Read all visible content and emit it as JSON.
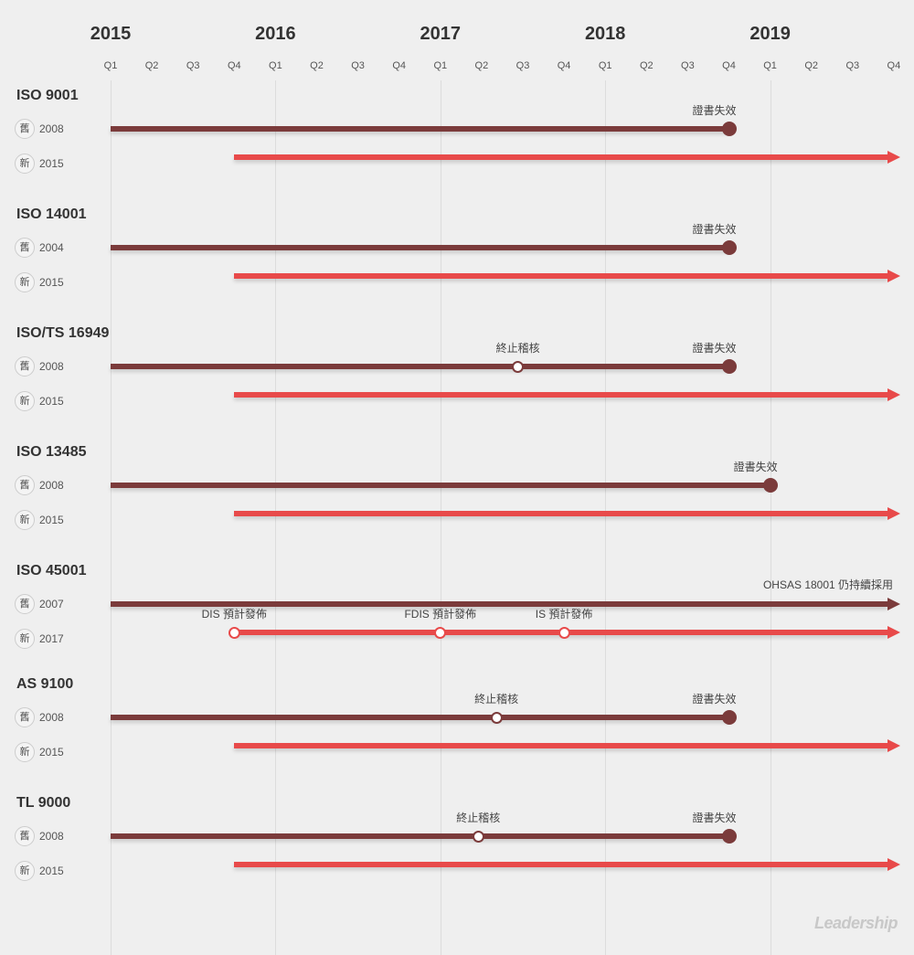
{
  "axis": {
    "years": [
      "2015",
      "2016",
      "2017",
      "2018",
      "2019"
    ],
    "quarters": [
      "Q1",
      "Q2",
      "Q3",
      "Q4"
    ]
  },
  "colors": {
    "old": "#7b3b3b",
    "new": "#e84a4a",
    "background": "#efefef"
  },
  "rows": [
    {
      "title": "ISO 9001",
      "old": {
        "badge": "舊",
        "version": "2008",
        "end": 2018.75,
        "end_type": "dot",
        "milestones": [
          {
            "at": 2018.75,
            "label": "證書失效",
            "type": "filled"
          }
        ]
      },
      "new": {
        "badge": "新",
        "version": "2015",
        "start": 2015.75,
        "end_type": "arrow",
        "milestones": []
      }
    },
    {
      "title": "ISO 14001",
      "old": {
        "badge": "舊",
        "version": "2004",
        "end": 2018.75,
        "end_type": "dot",
        "milestones": [
          {
            "at": 2018.75,
            "label": "證書失效",
            "type": "filled"
          }
        ]
      },
      "new": {
        "badge": "新",
        "version": "2015",
        "start": 2015.75,
        "end_type": "arrow",
        "milestones": []
      }
    },
    {
      "title": "ISO/TS 16949",
      "old": {
        "badge": "舊",
        "version": "2008",
        "end": 2018.75,
        "end_type": "dot",
        "milestones": [
          {
            "at": 2017.47,
            "label": "終止稽核",
            "type": "hollow"
          },
          {
            "at": 2018.75,
            "label": "證書失效",
            "type": "filled"
          }
        ]
      },
      "new": {
        "badge": "新",
        "version": "2015",
        "start": 2015.75,
        "end_type": "arrow",
        "milestones": []
      }
    },
    {
      "title": "ISO 13485",
      "old": {
        "badge": "舊",
        "version": "2008",
        "end": 2019.0,
        "end_type": "dot",
        "milestones": [
          {
            "at": 2019.0,
            "label": "證書失效",
            "type": "filled"
          }
        ]
      },
      "new": {
        "badge": "新",
        "version": "2015",
        "start": 2015.75,
        "end_type": "arrow",
        "milestones": []
      }
    },
    {
      "title": "ISO 45001",
      "old": {
        "badge": "舊",
        "version": "2007",
        "end_type": "arrow",
        "note": "OHSAS 18001 仍持續採用",
        "milestones": []
      },
      "new": {
        "badge": "新",
        "version": "2017",
        "start": 2015.75,
        "end_type": "arrow",
        "milestones": [
          {
            "at": 2015.75,
            "label": "DIS 預計發佈",
            "type": "hollow"
          },
          {
            "at": 2017.0,
            "label": "FDIS 預計發佈",
            "type": "hollow"
          },
          {
            "at": 2017.75,
            "label": "IS 預計發佈",
            "type": "hollow"
          }
        ]
      }
    },
    {
      "title": "AS 9100",
      "old": {
        "badge": "舊",
        "version": "2008",
        "end": 2018.75,
        "end_type": "dot",
        "milestones": [
          {
            "at": 2017.34,
            "label": "終止稽核",
            "type": "hollow"
          },
          {
            "at": 2018.75,
            "label": "證書失效",
            "type": "filled"
          }
        ]
      },
      "new": {
        "badge": "新",
        "version": "2015",
        "start": 2015.75,
        "end_type": "arrow",
        "milestones": []
      }
    },
    {
      "title": "TL 9000",
      "old": {
        "badge": "舊",
        "version": "2008",
        "end": 2018.75,
        "end_type": "dot",
        "milestones": [
          {
            "at": 2017.23,
            "label": "終止稽核",
            "type": "hollow"
          },
          {
            "at": 2018.75,
            "label": "證書失效",
            "type": "filled"
          }
        ]
      },
      "new": {
        "badge": "新",
        "version": "2015",
        "start": 2015.75,
        "end_type": "arrow",
        "milestones": []
      }
    }
  ],
  "logo": "Leadership"
}
